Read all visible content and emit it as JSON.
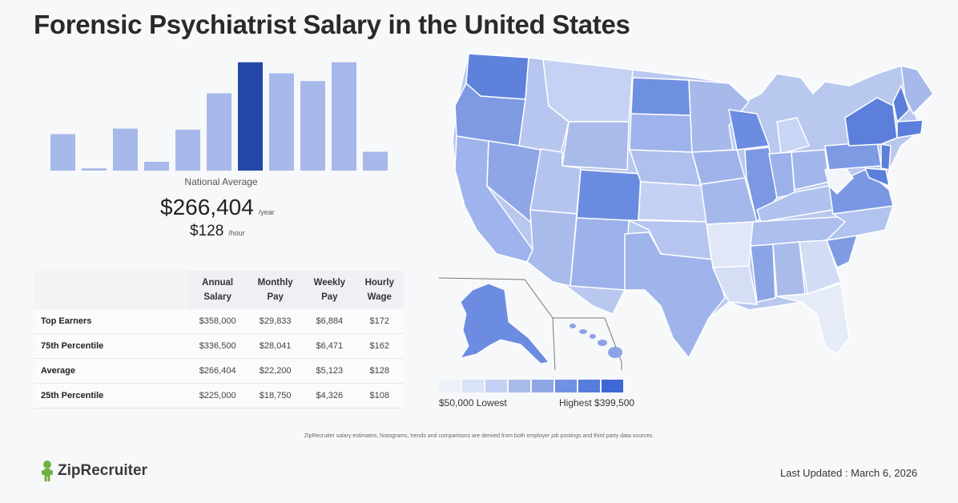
{
  "title": "Forensic Psychiatrist Salary in the United States",
  "chart_data": [
    {
      "type": "bar",
      "title": "",
      "xlabel": "",
      "ylabel": "",
      "values": [
        33,
        2,
        38,
        8,
        37,
        70,
        98,
        88,
        81,
        98,
        17
      ],
      "highlight_index": 6,
      "colors": {
        "bar": "#a7b8ea",
        "highlight": "#2548a8"
      }
    },
    {
      "type": "table",
      "columns": [
        "Annual Salary",
        "Monthly Pay",
        "Weekly Pay",
        "Hourly Wage"
      ],
      "rows": [
        {
          "label": "Top Earners",
          "values": [
            "$358,000",
            "$29,833",
            "$6,884",
            "$172"
          ]
        },
        {
          "label": "75th Percentile",
          "values": [
            "$336,500",
            "$28,041",
            "$6,471",
            "$162"
          ]
        },
        {
          "label": "Average",
          "values": [
            "$266,404",
            "$22,200",
            "$5,123",
            "$128"
          ]
        },
        {
          "label": "25th Percentile",
          "values": [
            "$225,000",
            "$18,750",
            "$4,326",
            "$108"
          ]
        }
      ]
    }
  ],
  "national_average": {
    "label": "National Average",
    "yearly": "$266,404",
    "yearly_unit": "/year",
    "hourly": "$128",
    "hourly_unit": "/hour"
  },
  "table_headers": [
    {
      "line1": "Annual",
      "line2": "Salary"
    },
    {
      "line1": "Monthly",
      "line2": "Pay"
    },
    {
      "line1": "Weekly",
      "line2": "Pay"
    },
    {
      "line1": "Hourly",
      "line2": "Wage"
    }
  ],
  "map": {
    "legend_low": "$50,000 Lowest",
    "legend_high": "Highest $399,500",
    "legend_colors": [
      "#eef1fa",
      "#dae2f6",
      "#c3d0f1",
      "#a9bbeb",
      "#8ea6e6",
      "#7191e2",
      "#577ddc",
      "#3f68d6"
    ]
  },
  "footnote": "ZipRecruiter salary estimates, histograms, trends and comparisons are derived from both employer job postings and third party data sources.",
  "logo_text": "ZipRecruiter",
  "last_updated": "Last Updated : March 6, 2026"
}
